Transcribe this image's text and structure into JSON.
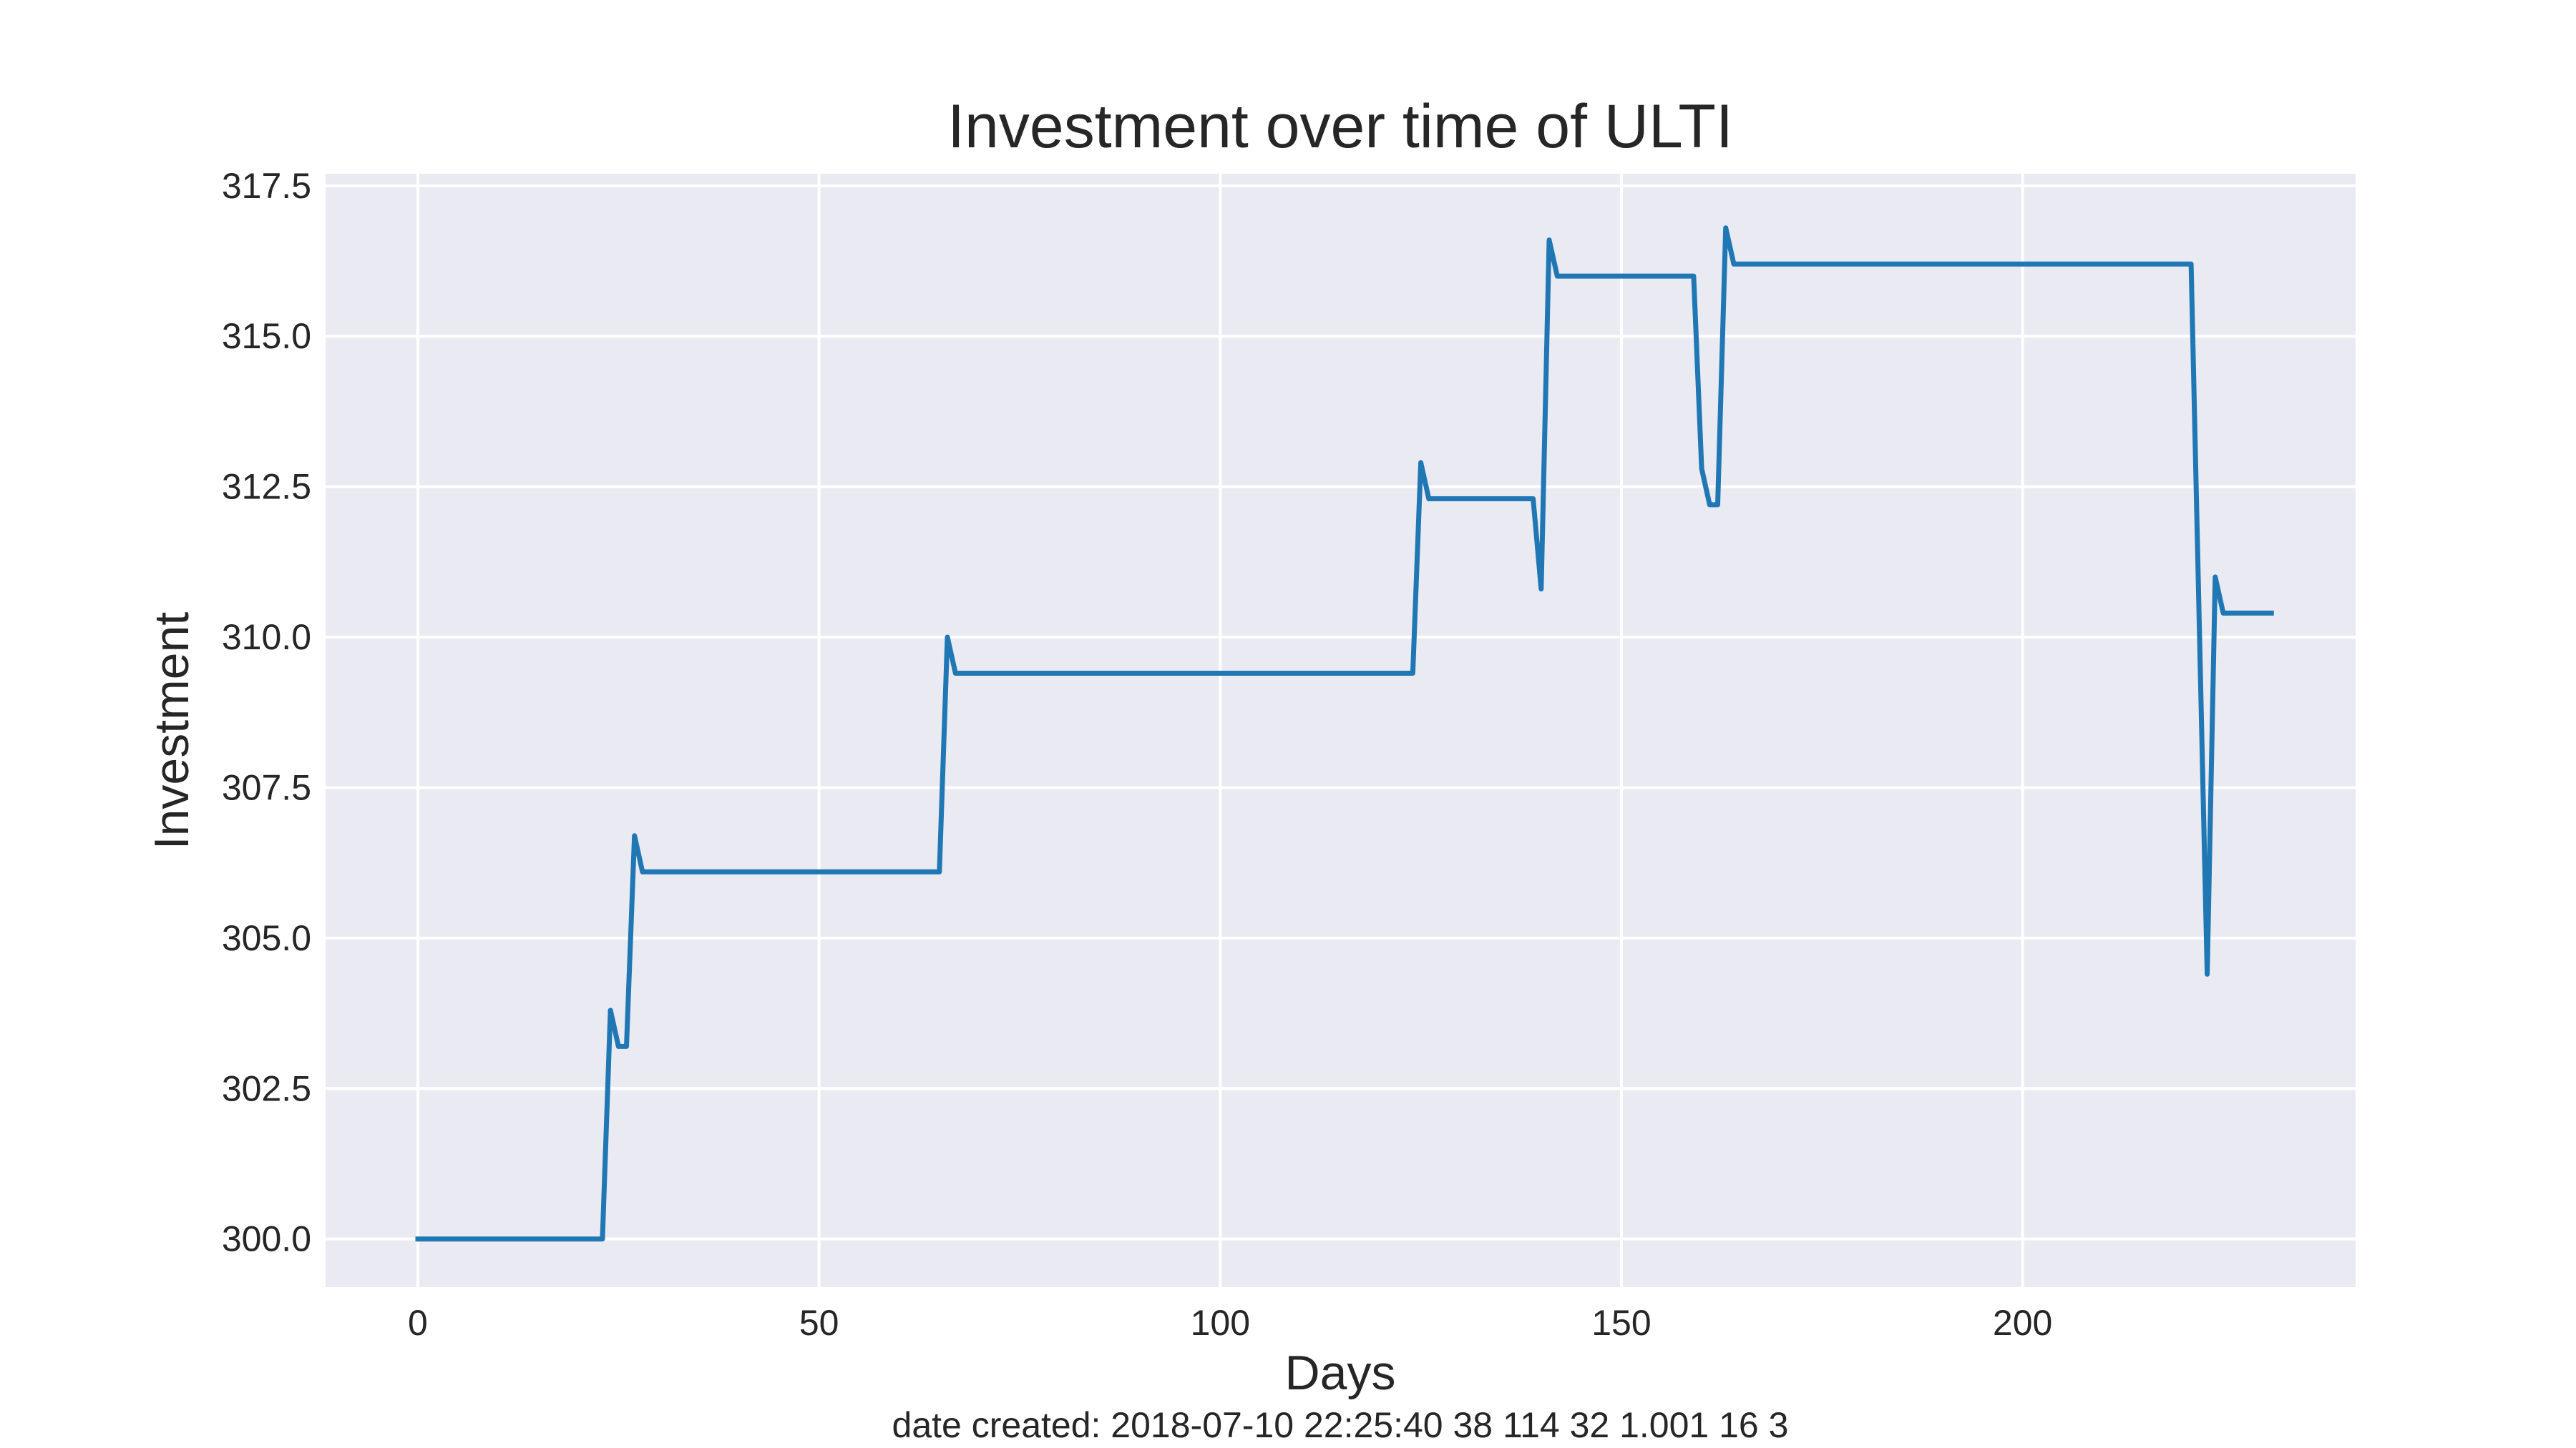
{
  "chart_data": {
    "type": "line",
    "title": "Investment over time of ULTI",
    "xlabel": "Days",
    "ylabel": "Investment",
    "footer": "date created: 2018-07-10 22:25:40 38 114 32 1.001 16 3",
    "xlim": [
      -11.5,
      241.5
    ],
    "ylim": [
      299.2,
      317.7
    ],
    "x_ticks": [
      0,
      50,
      100,
      150,
      200
    ],
    "y_ticks": [
      300.0,
      302.5,
      305.0,
      307.5,
      310.0,
      312.5,
      315.0,
      317.5
    ],
    "grid": true,
    "background_color": "#eaeaf2",
    "grid_color": "#ffffff",
    "series": [
      {
        "color": "#1f77b4",
        "points": [
          [
            0,
            300.0
          ],
          [
            23,
            300.0
          ],
          [
            24,
            303.8
          ],
          [
            25,
            303.2
          ],
          [
            26,
            303.2
          ],
          [
            27,
            306.7
          ],
          [
            28,
            306.1
          ],
          [
            65,
            306.1
          ],
          [
            66,
            310.0
          ],
          [
            67,
            309.4
          ],
          [
            124,
            309.4
          ],
          [
            125,
            312.9
          ],
          [
            126,
            312.3
          ],
          [
            139,
            312.3
          ],
          [
            140,
            310.8
          ],
          [
            141,
            316.6
          ],
          [
            142,
            316.0
          ],
          [
            159,
            316.0
          ],
          [
            160,
            312.8
          ],
          [
            161,
            312.2
          ],
          [
            162,
            312.2
          ],
          [
            163,
            316.8
          ],
          [
            164,
            316.2
          ],
          [
            221,
            316.2
          ],
          [
            223,
            304.4
          ],
          [
            224,
            311.0
          ],
          [
            225,
            310.4
          ],
          [
            231,
            310.4
          ]
        ]
      }
    ]
  }
}
